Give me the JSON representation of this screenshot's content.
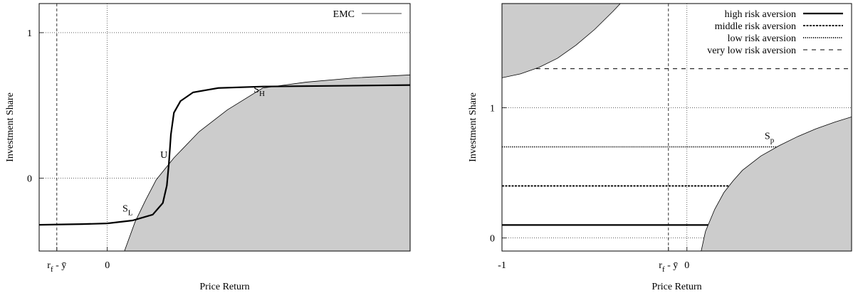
{
  "chart_data": [
    {
      "type": "line",
      "xlabel": "Price Return",
      "ylabel": "Investment Share",
      "xlim": [
        -1.35,
        6
      ],
      "ylim": [
        -0.5,
        1.2
      ],
      "xticks": [
        {
          "value": -1,
          "label": "rf - ȳ"
        },
        0
      ],
      "yticks": [
        0,
        1
      ],
      "grid": true,
      "legend": "upper right",
      "series": [
        {
          "name": "EMC",
          "color": "#000000",
          "width": 0.8,
          "style": "solid",
          "fill": "#cccccc",
          "x": [
            0.34,
            0.55,
            0.76,
            0.97,
            1.32,
            1.82,
            2.38,
            3.08,
            3.93,
            4.92,
            6
          ],
          "values": [
            -0.5,
            -0.3,
            -0.15,
            -0.01,
            0.14,
            0.32,
            0.47,
            0.62,
            0.66,
            0.69,
            0.71
          ]
        },
        {
          "color": "#000000",
          "width": 2.2,
          "style": "solid",
          "x": [
            -1.35,
            -0.5,
            0,
            0.5,
            0.9,
            1.1,
            1.18,
            1.22,
            1.26,
            1.32,
            1.45,
            1.7,
            2.2,
            3.08,
            6
          ],
          "values": [
            -0.32,
            -0.315,
            -0.31,
            -0.29,
            -0.25,
            -0.17,
            -0.05,
            0.1,
            0.3,
            0.45,
            0.53,
            0.59,
            0.62,
            0.63,
            0.64
          ]
        }
      ],
      "annotations": [
        {
          "text": "SL",
          "x": 0.3,
          "y": -0.23
        },
        {
          "text": "U",
          "x": 1.05,
          "y": 0.14
        },
        {
          "text": "SH",
          "x": 2.9,
          "y": 0.59
        }
      ]
    },
    {
      "type": "line",
      "xlabel": "Price Return",
      "ylabel": "Investment Share",
      "xlim": [
        -1,
        0.89
      ],
      "ylim": [
        -0.1,
        1.8
      ],
      "xticks": [
        -1,
        {
          "value": -0.1,
          "label": "rf - ȳ"
        },
        0
      ],
      "yticks": [
        0,
        1
      ],
      "grid": true,
      "legend": "upper right",
      "series": [
        {
          "name": "high risk aversion",
          "color": "#000000",
          "width": 2.2,
          "style": "solid",
          "x": [
            -1,
            0.89
          ],
          "values": [
            0.1,
            0.1
          ]
        },
        {
          "name": "middle risk aversion",
          "color": "#000000",
          "width": 1.8,
          "style": "dashed-dense",
          "x": [
            -1,
            0.89
          ],
          "values": [
            0.4,
            0.4
          ]
        },
        {
          "name": "low risk aversion",
          "color": "#000000",
          "width": 1.8,
          "style": "dotted",
          "x": [
            -1,
            0.89
          ],
          "values": [
            0.7,
            0.7
          ]
        },
        {
          "name": "very low risk aversion",
          "color": "#000000",
          "width": 1,
          "style": "dashed",
          "x": [
            -1,
            0.89
          ],
          "values": [
            1.3,
            1.3
          ]
        },
        {
          "color": "#000000",
          "width": 0.8,
          "style": "solid",
          "fill": "#cccccc",
          "fill_corner": "top-left",
          "x": [
            -1,
            -0.9,
            -0.8,
            -0.7,
            -0.6,
            -0.5,
            -0.4,
            -0.36
          ],
          "values": [
            1.23,
            1.26,
            1.31,
            1.38,
            1.48,
            1.6,
            1.74,
            1.8
          ]
        },
        {
          "color": "#000000",
          "width": 0.8,
          "style": "solid",
          "fill": "#cccccc",
          "fill_corner": "bottom-right",
          "x": [
            0.077,
            0.1,
            0.15,
            0.2,
            0.25,
            0.3,
            0.4,
            0.5,
            0.6,
            0.7,
            0.8,
            0.89
          ],
          "values": [
            -0.1,
            0.05,
            0.22,
            0.35,
            0.44,
            0.52,
            0.63,
            0.71,
            0.78,
            0.84,
            0.89,
            0.93
          ]
        }
      ],
      "annotations": [
        {
          "text": "Sp",
          "x": 0.42,
          "y": 0.76
        }
      ]
    }
  ]
}
